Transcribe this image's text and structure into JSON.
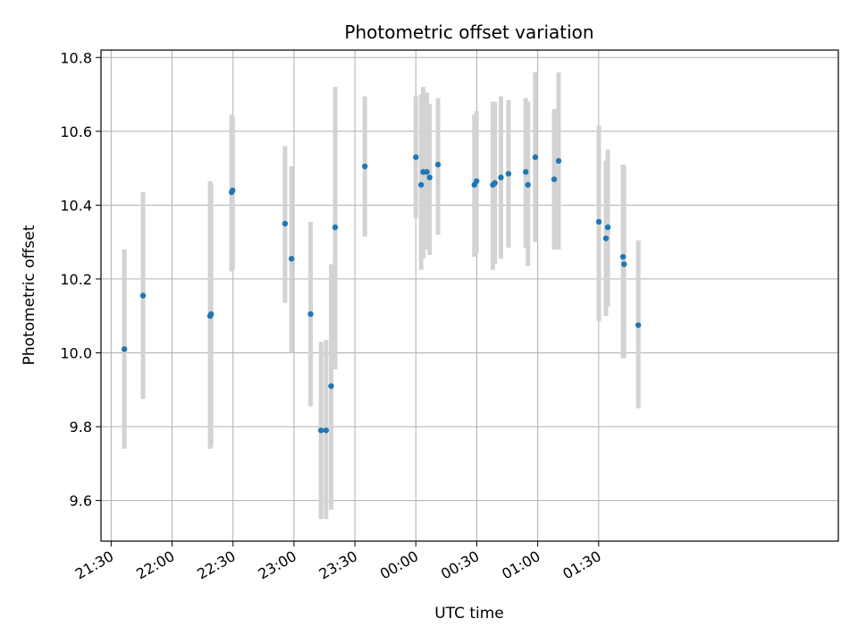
{
  "chart_data": {
    "type": "scatter",
    "title": "Photometric offset variation",
    "xlabel": "UTC time",
    "ylabel": "Photometric offset",
    "x_unit": "minutes",
    "xlim": [
      -65,
      298
    ],
    "ylim": [
      9.49,
      10.82
    ],
    "x_ticks": [
      {
        "value": -60,
        "label": "21:30"
      },
      {
        "value": -30,
        "label": "22:00"
      },
      {
        "value": 0,
        "label": "22:30"
      },
      {
        "value": 30,
        "label": "23:00"
      },
      {
        "value": 60,
        "label": "23:30"
      },
      {
        "value": 90,
        "label": "00:00"
      },
      {
        "value": 120,
        "label": "00:30"
      },
      {
        "value": 150,
        "label": "01:00"
      },
      {
        "value": 180,
        "label": "01:30"
      }
    ],
    "y_ticks": [
      {
        "value": 9.6,
        "label": "9.6"
      },
      {
        "value": 9.8,
        "label": "9.8"
      },
      {
        "value": 10.0,
        "label": "10.0"
      },
      {
        "value": 10.2,
        "label": "10.2"
      },
      {
        "value": 10.4,
        "label": "10.4"
      },
      {
        "value": 10.6,
        "label": "10.6"
      },
      {
        "value": 10.8,
        "label": "10.8"
      }
    ],
    "grid": true,
    "point_color": "#1f77b4",
    "errorbar_color": "#d3d3d3",
    "points": [
      {
        "x": -53.5,
        "y": 10.01,
        "lo": 9.74,
        "hi": 10.28
      },
      {
        "x": -44.3,
        "y": 10.155,
        "lo": 9.875,
        "hi": 10.435
      },
      {
        "x": -11.3,
        "y": 10.1,
        "lo": 9.74,
        "hi": 10.465
      },
      {
        "x": -10.8,
        "y": 10.105,
        "lo": 9.745,
        "hi": 10.46
      },
      {
        "x": -0.7,
        "y": 10.435,
        "lo": 10.22,
        "hi": 10.645
      },
      {
        "x": -0.2,
        "y": 10.44,
        "lo": 10.225,
        "hi": 10.64
      },
      {
        "x": 25.6,
        "y": 10.35,
        "lo": 10.135,
        "hi": 10.56
      },
      {
        "x": 28.8,
        "y": 10.255,
        "lo": 10.0,
        "hi": 10.505
      },
      {
        "x": 38.2,
        "y": 10.105,
        "lo": 9.855,
        "hi": 10.355
      },
      {
        "x": 43.3,
        "y": 9.79,
        "lo": 9.55,
        "hi": 10.03
      },
      {
        "x": 45.8,
        "y": 9.79,
        "lo": 9.55,
        "hi": 10.035
      },
      {
        "x": 48.3,
        "y": 9.91,
        "lo": 9.575,
        "hi": 10.24
      },
      {
        "x": 50.3,
        "y": 10.34,
        "lo": 9.955,
        "hi": 10.72
      },
      {
        "x": 64.9,
        "y": 10.505,
        "lo": 10.315,
        "hi": 10.695
      },
      {
        "x": 90.0,
        "y": 10.53,
        "lo": 10.365,
        "hi": 10.695
      },
      {
        "x": 92.6,
        "y": 10.455,
        "lo": 10.225,
        "hi": 10.7
      },
      {
        "x": 93.6,
        "y": 10.49,
        "lo": 10.255,
        "hi": 10.72
      },
      {
        "x": 95.4,
        "y": 10.49,
        "lo": 10.28,
        "hi": 10.705
      },
      {
        "x": 96.8,
        "y": 10.475,
        "lo": 10.265,
        "hi": 10.675
      },
      {
        "x": 100.9,
        "y": 10.51,
        "lo": 10.32,
        "hi": 10.69
      },
      {
        "x": 118.8,
        "y": 10.455,
        "lo": 10.26,
        "hi": 10.645
      },
      {
        "x": 119.9,
        "y": 10.465,
        "lo": 10.27,
        "hi": 10.655
      },
      {
        "x": 127.9,
        "y": 10.455,
        "lo": 10.225,
        "hi": 10.68
      },
      {
        "x": 128.9,
        "y": 10.46,
        "lo": 10.24,
        "hi": 10.68
      },
      {
        "x": 131.9,
        "y": 10.475,
        "lo": 10.255,
        "hi": 10.695
      },
      {
        "x": 135.6,
        "y": 10.485,
        "lo": 10.285,
        "hi": 10.685
      },
      {
        "x": 144.1,
        "y": 10.49,
        "lo": 10.285,
        "hi": 10.69
      },
      {
        "x": 145.2,
        "y": 10.455,
        "lo": 10.235,
        "hi": 10.68
      },
      {
        "x": 148.8,
        "y": 10.53,
        "lo": 10.3,
        "hi": 10.76
      },
      {
        "x": 158.1,
        "y": 10.47,
        "lo": 10.28,
        "hi": 10.66
      },
      {
        "x": 160.3,
        "y": 10.52,
        "lo": 10.28,
        "hi": 10.76
      },
      {
        "x": 180.1,
        "y": 10.355,
        "lo": 10.085,
        "hi": 10.615
      },
      {
        "x": 183.6,
        "y": 10.31,
        "lo": 10.1,
        "hi": 10.52
      },
      {
        "x": 184.5,
        "y": 10.34,
        "lo": 10.125,
        "hi": 10.55
      },
      {
        "x": 192.0,
        "y": 10.26,
        "lo": 9.985,
        "hi": 10.51
      },
      {
        "x": 192.5,
        "y": 10.24,
        "lo": 9.985,
        "hi": 10.505
      },
      {
        "x": 199.5,
        "y": 10.075,
        "lo": 9.85,
        "hi": 10.305
      }
    ]
  }
}
